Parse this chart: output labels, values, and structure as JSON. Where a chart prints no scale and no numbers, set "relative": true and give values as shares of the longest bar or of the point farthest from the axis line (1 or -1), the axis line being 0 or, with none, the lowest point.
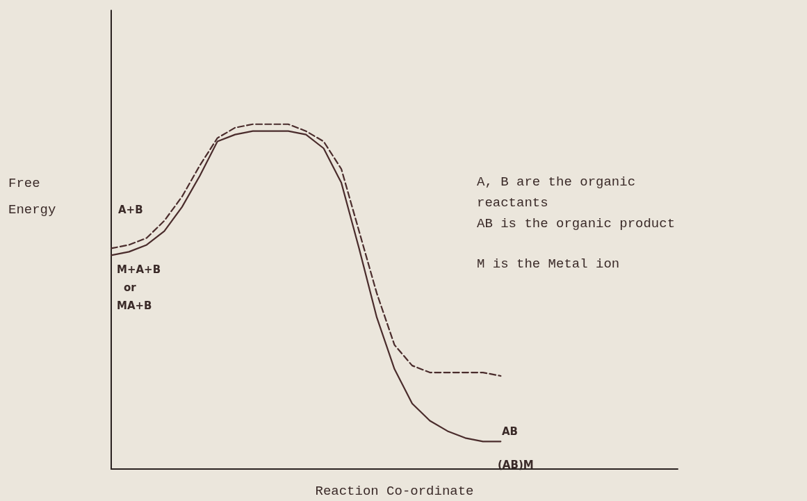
{
  "chart_data": {
    "type": "line",
    "relative": true,
    "xlabel": "Reaction Co-ordinate",
    "ylabel": "Free Energy",
    "marker": "none",
    "grid": false,
    "categories": [
      null,
      null,
      null,
      null,
      null,
      null,
      null,
      null,
      null,
      null,
      null,
      null,
      null,
      null,
      null,
      null,
      null,
      null,
      null,
      null,
      null,
      null,
      null,
      null,
      null,
      null,
      null,
      null,
      null,
      null,
      null,
      null,
      null
    ],
    "series": [
      {
        "color": "#4a2c2c",
        "line_style": "solid",
        "values": [
          0.62,
          0.63,
          0.65,
          0.69,
          0.76,
          0.85,
          0.95,
          0.97,
          0.98,
          0.98,
          0.98,
          0.97,
          0.93,
          0.83,
          0.64,
          0.44,
          0.29,
          0.19,
          0.14,
          0.11,
          0.09,
          0.08,
          0.08,
          null,
          null,
          null,
          null,
          null,
          null,
          null,
          null,
          null,
          null
        ]
      },
      {
        "color": "#4a2c2c",
        "line_style": "dashed",
        "values": [
          0.64,
          0.65,
          0.67,
          0.72,
          0.79,
          0.88,
          0.96,
          0.99,
          1.0,
          1,
          1.0,
          0.98,
          0.95,
          0.87,
          0.69,
          0.51,
          0.36,
          0.3,
          0.28,
          0.28,
          0.28,
          0.28,
          0.27,
          null,
          null,
          null,
          null,
          null,
          null,
          null,
          null,
          null,
          null
        ]
      }
    ],
    "annotations": [
      "A+B",
      "M+A+B",
      "or",
      "MA+B",
      "AB",
      "(AB)M",
      "A, B are the organic reactants",
      "AB is the organic product",
      "M is the Metal ion"
    ]
  }
}
